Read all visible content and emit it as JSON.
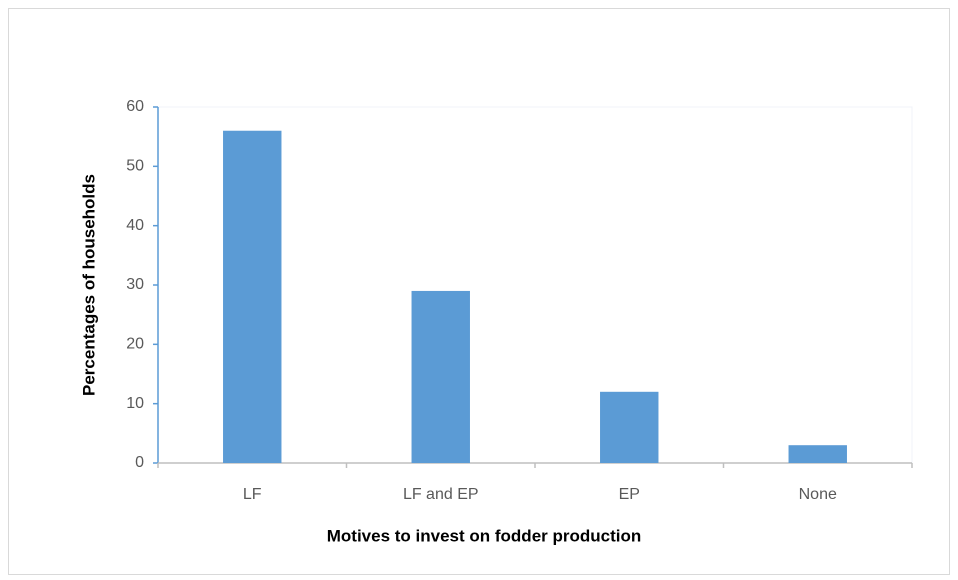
{
  "chart_data": {
    "type": "bar",
    "x_label": "Motives to invest on fodder production",
    "y_label": "Percentages of households",
    "categories": [
      "LF",
      "LF and EP",
      "EP",
      "None"
    ],
    "values": [
      56,
      29,
      12,
      3
    ],
    "color": "#5b9bd5",
    "ylim": [
      0,
      60
    ],
    "yticks": [
      0,
      10,
      20,
      30,
      40,
      50,
      60
    ],
    "grid": false
  }
}
